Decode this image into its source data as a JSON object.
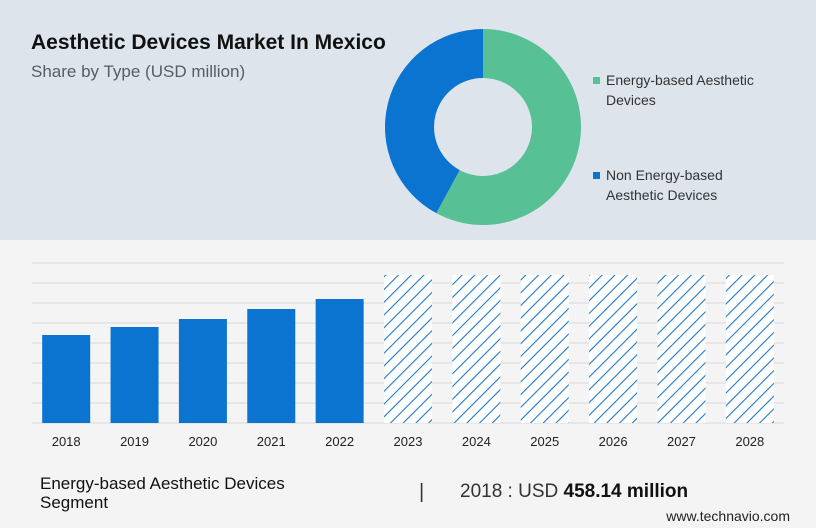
{
  "title": "Aesthetic Devices Market In Mexico",
  "subtitle": "Share by Type (USD million)",
  "colors": {
    "energy_based": "#57c095",
    "non_energy_based": "#0a74d0",
    "forecast_hatch": "#1f78c8",
    "top_panel_bg": "#dde4ec",
    "bottom_panel_bg": "#f4f4f4"
  },
  "legend": [
    {
      "label": "Energy-based Aesthetic Devices",
      "color": "#57c095"
    },
    {
      "label": "Non Energy-based Aesthetic Devices",
      "color": "#0a74d0"
    }
  ],
  "chart_data": [
    {
      "type": "pie",
      "variant": "donut",
      "title": "Share by Type (USD million)",
      "labels": [
        "Energy-based Aesthetic Devices",
        "Non Energy-based Aesthetic Devices"
      ],
      "values": [
        57.9,
        42.1
      ],
      "colors": [
        "#57c095",
        "#0a74d0"
      ]
    },
    {
      "type": "bar",
      "categories": [
        "2018",
        "2019",
        "2020",
        "2021",
        "2022",
        "2023",
        "2024",
        "2025",
        "2026",
        "2027",
        "2028"
      ],
      "values": [
        44,
        48,
        52,
        57,
        62,
        null,
        null,
        null,
        null,
        null,
        null
      ],
      "forecast_categories": [
        "2023",
        "2024",
        "2025",
        "2026",
        "2027",
        "2028"
      ],
      "forecast_style": "hatched",
      "ylim": [
        0,
        80
      ],
      "grid": true,
      "color": "#0a74d0"
    }
  ],
  "segment_label": "Energy-based Aesthetic Devices Segment",
  "divider": "|",
  "stat_prefix": "2018 : USD ",
  "stat_value": "458.14 million",
  "source": "www.technavio.com"
}
